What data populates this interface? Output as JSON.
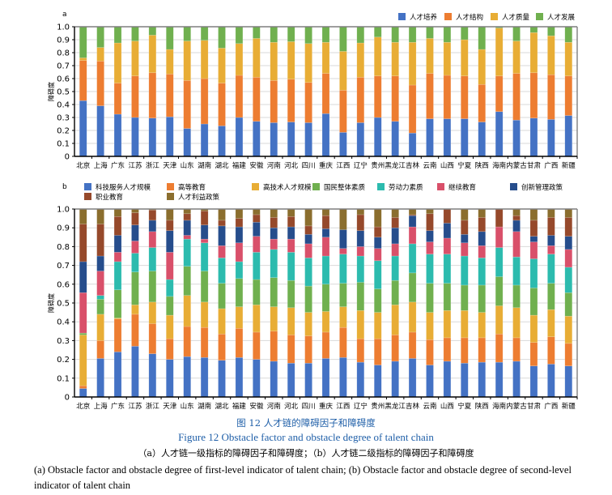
{
  "chart_data": [
    {
      "panel_label": "a",
      "type": "bar",
      "stacked": true,
      "title": "",
      "xlabel": "",
      "ylabel": "障碍度",
      "ylim": [
        0,
        1.0
      ],
      "yticks": [
        "0",
        "0.1",
        "0.2",
        "0.3",
        "0.4",
        "0.5",
        "0.6",
        "0.7",
        "0.8",
        "0.9",
        "1.0"
      ],
      "grid": true,
      "legend_position": "top-right",
      "categories": [
        "北京",
        "上海",
        "广东",
        "江苏",
        "浙江",
        "天津",
        "山东",
        "湖南",
        "湖北",
        "福建",
        "安徽",
        "河南",
        "河北",
        "四川",
        "重庆",
        "江西",
        "辽宁",
        "贵州",
        "黑龙江",
        "吉林",
        "云南",
        "山西",
        "宁夏",
        "陕西",
        "海南",
        "内蒙古",
        "甘肃",
        "广西",
        "新疆"
      ],
      "series": [
        {
          "name": "人才培养",
          "color": "#4472c4",
          "values": [
            0.43,
            0.39,
            0.325,
            0.3,
            0.295,
            0.305,
            0.215,
            0.25,
            0.235,
            0.3,
            0.27,
            0.26,
            0.265,
            0.26,
            0.33,
            0.185,
            0.26,
            0.3,
            0.27,
            0.18,
            0.29,
            0.29,
            0.29,
            0.265,
            0.345,
            0.28,
            0.295,
            0.285,
            0.315
          ]
        },
        {
          "name": "人才结构",
          "color": "#ed7d31",
          "values": [
            0.31,
            0.345,
            0.24,
            0.32,
            0.35,
            0.33,
            0.37,
            0.35,
            0.33,
            0.325,
            0.34,
            0.325,
            0.33,
            0.31,
            0.31,
            0.325,
            0.35,
            0.32,
            0.35,
            0.37,
            0.35,
            0.335,
            0.33,
            0.29,
            0.275,
            0.36,
            0.35,
            0.345,
            0.305
          ]
        },
        {
          "name": "人才质量",
          "color": "#e8ad35",
          "values": [
            0.02,
            0.105,
            0.31,
            0.27,
            0.29,
            0.19,
            0.305,
            0.295,
            0.27,
            0.245,
            0.3,
            0.295,
            0.29,
            0.3,
            0.24,
            0.3,
            0.265,
            0.3,
            0.26,
            0.33,
            0.27,
            0.255,
            0.28,
            0.27,
            0.37,
            0.25,
            0.31,
            0.3,
            0.26
          ]
        },
        {
          "name": "人才发展",
          "color": "#70b04f",
          "values": [
            0.24,
            0.16,
            0.125,
            0.11,
            0.065,
            0.175,
            0.11,
            0.105,
            0.165,
            0.13,
            0.09,
            0.12,
            0.115,
            0.13,
            0.12,
            0.19,
            0.125,
            0.08,
            0.12,
            0.12,
            0.09,
            0.12,
            0.1,
            0.175,
            0.01,
            0.11,
            0.045,
            0.07,
            0.12
          ]
        }
      ]
    },
    {
      "panel_label": "b",
      "type": "bar",
      "stacked": true,
      "title": "",
      "xlabel": "",
      "ylabel": "障碍度",
      "ylim": [
        0,
        1.0
      ],
      "yticks": [
        "0",
        "0.1",
        "0.2",
        "0.3",
        "0.4",
        "0.5",
        "0.6",
        "0.7",
        "0.8",
        "0.9",
        "1.0"
      ],
      "grid": true,
      "legend_position": "top",
      "categories": [
        "北京",
        "上海",
        "广东",
        "江苏",
        "浙江",
        "天津",
        "山东",
        "湖南",
        "湖北",
        "福建",
        "安徽",
        "河南",
        "河北",
        "四川",
        "重庆",
        "江西",
        "辽宁",
        "贵州",
        "黑龙江",
        "吉林",
        "云南",
        "山西",
        "宁夏",
        "陕西",
        "海南",
        "内蒙古",
        "甘肃",
        "广西",
        "新疆"
      ],
      "series": [
        {
          "name": "科技服务人才规模",
          "color": "#4472c4",
          "values": [
            0.045,
            0.205,
            0.24,
            0.27,
            0.23,
            0.2,
            0.215,
            0.21,
            0.195,
            0.21,
            0.2,
            0.19,
            0.18,
            0.18,
            0.205,
            0.21,
            0.185,
            0.17,
            0.19,
            0.205,
            0.17,
            0.19,
            0.18,
            0.185,
            0.185,
            0.19,
            0.165,
            0.175,
            0.165
          ]
        },
        {
          "name": "高等教育",
          "color": "#ed7d31",
          "values": [
            0.015,
            0.095,
            0.175,
            0.17,
            0.16,
            0.11,
            0.16,
            0.16,
            0.14,
            0.155,
            0.145,
            0.16,
            0.15,
            0.145,
            0.14,
            0.16,
            0.125,
            0.14,
            0.14,
            0.14,
            0.135,
            0.125,
            0.135,
            0.13,
            0.15,
            0.125,
            0.125,
            0.145,
            0.12
          ]
        },
        {
          "name": "高技术人才规模",
          "color": "#e8ad35",
          "values": [
            0.27,
            0.14,
            0.005,
            0.05,
            0.115,
            0.125,
            0.165,
            0.135,
            0.135,
            0.115,
            0.145,
            0.13,
            0.145,
            0.125,
            0.11,
            0.11,
            0.15,
            0.14,
            0.16,
            0.16,
            0.145,
            0.145,
            0.145,
            0.135,
            0.15,
            0.16,
            0.145,
            0.145,
            0.145
          ]
        },
        {
          "name": "国民整体素质",
          "color": "#70b04f",
          "values": [
            0.01,
            0.08,
            0.15,
            0.175,
            0.165,
            0.1,
            0.155,
            0.165,
            0.135,
            0.15,
            0.135,
            0.155,
            0.145,
            0.14,
            0.145,
            0.125,
            0.15,
            0.125,
            0.13,
            0.155,
            0.155,
            0.145,
            0.135,
            0.145,
            0.155,
            0.12,
            0.145,
            0.14,
            0.125
          ]
        },
        {
          "name": "劳动力素质",
          "color": "#2cbbae",
          "values": [
            0.0,
            0.02,
            0.15,
            0.1,
            0.125,
            0.09,
            0.145,
            0.15,
            0.135,
            0.09,
            0.145,
            0.15,
            0.15,
            0.15,
            0.15,
            0.155,
            0.14,
            0.15,
            0.13,
            0.155,
            0.155,
            0.155,
            0.155,
            0.145,
            0.155,
            0.15,
            0.155,
            0.155,
            0.135
          ]
        },
        {
          "name": "继续教育",
          "color": "#d9506a",
          "values": [
            0.215,
            0.13,
            0.05,
            0.065,
            0.085,
            0.145,
            0.02,
            0.02,
            0.065,
            0.1,
            0.085,
            0.055,
            0.07,
            0.075,
            0.1,
            0.03,
            0.05,
            0.065,
            0.065,
            0.09,
            0.065,
            0.085,
            0.07,
            0.065,
            0.11,
            0.135,
            0.09,
            0.045,
            0.095
          ]
        },
        {
          "name": "创新管理政策",
          "color": "#264d8c",
          "values": [
            0.165,
            0.08,
            0.09,
            0.085,
            0.06,
            0.115,
            0.08,
            0.075,
            0.105,
            0.085,
            0.075,
            0.06,
            0.065,
            0.05,
            0.045,
            0.1,
            0.085,
            0.06,
            0.085,
            0.06,
            0.06,
            0.08,
            0.045,
            0.075,
            0.0,
            0.06,
            0.03,
            0.055,
            0.07
          ]
        },
        {
          "name": "职业教育",
          "color": "#96492b",
          "values": [
            0.2,
            0.17,
            0.1,
            0.065,
            0.055,
            0.055,
            0.035,
            0.075,
            0.03,
            0.045,
            0.04,
            0.055,
            0.055,
            0.045,
            0.07,
            0.0,
            0.085,
            0.055,
            0.055,
            0.005,
            0.09,
            0.075,
            0.075,
            0.075,
            0.095,
            0.025,
            0.085,
            0.095,
            0.1
          ]
        },
        {
          "name": "人才利益政策",
          "color": "#8b6e2e",
          "values": [
            0.08,
            0.08,
            0.04,
            0.02,
            0.005,
            0.06,
            0.025,
            0.01,
            0.06,
            0.05,
            0.03,
            0.045,
            0.04,
            0.09,
            0.035,
            0.11,
            0.03,
            0.095,
            0.045,
            0.03,
            0.025,
            0.0,
            0.06,
            0.045,
            0.0,
            0.035,
            0.06,
            0.045,
            0.045
          ]
        }
      ]
    }
  ],
  "captions": {
    "figure_cn": "图 12    人才链的障碍因子和障碍度",
    "figure_en": "Figure 12    Obstacle factor and obstacle degree of talent chain",
    "sub_cn": "（a）人才链一级指标的障碍因子和障碍度；（b）人才链二级指标的障碍因子和障碍度",
    "sub_en": "(a) Obstacle factor and obstacle degree of first-level indicator of talent chain; (b) Obstacle factor and obstacle degree of second-level indicator of talent chain"
  }
}
